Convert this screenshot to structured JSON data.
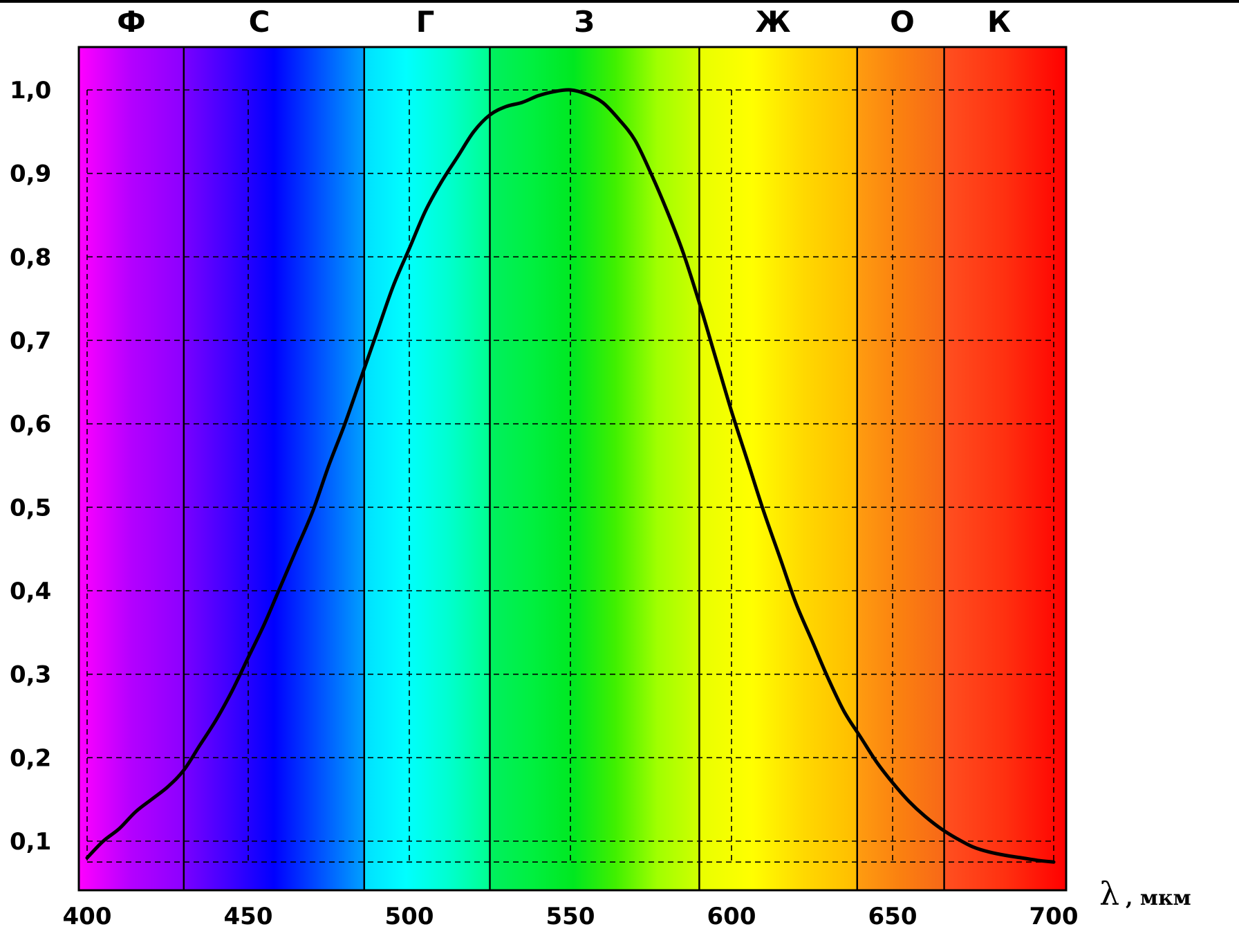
{
  "chart_data": {
    "type": "line",
    "x_axis": {
      "symbol": "λ",
      "unit": ", мкм",
      "range": [
        400,
        700
      ],
      "ticks": [
        "400",
        "450",
        "500",
        "550",
        "600",
        "650",
        "700"
      ]
    },
    "y_axis": {
      "ticks": [
        "0,1",
        "0,2",
        "0,3",
        "0,4",
        "0,5",
        "0,6",
        "0,7",
        "0,8",
        "0,9",
        "1,0"
      ]
    },
    "grid": true,
    "color_bands": [
      {
        "label": "Ф",
        "from": 400,
        "to": 430,
        "gradient": [
          "#ff00ff",
          "#b400ff",
          "#8c00ff"
        ]
      },
      {
        "label": "С",
        "from": 430,
        "to": 486,
        "gradient": [
          "#7a00ff",
          "#4000ff",
          "#0000ff",
          "#0050ff",
          "#00a0ff"
        ]
      },
      {
        "label": "Г",
        "from": 486,
        "to": 525,
        "gradient": [
          "#00e0ff",
          "#00ffff",
          "#00ffd0",
          "#00ff90"
        ]
      },
      {
        "label": "З",
        "from": 525,
        "to": 590,
        "gradient": [
          "#00f060",
          "#00f040",
          "#00e820",
          "#40f000",
          "#a0ff00",
          "#d0ff00"
        ]
      },
      {
        "label": "Ж",
        "from": 590,
        "to": 639,
        "gradient": [
          "#e8ff00",
          "#ffff00",
          "#ffd800",
          "#ffbc00"
        ]
      },
      {
        "label": "О",
        "from": 639,
        "to": 666,
        "gradient": [
          "#ff9c10",
          "#fa8010",
          "#f86818"
        ]
      },
      {
        "label": "К",
        "from": 666,
        "to": 700,
        "gradient": [
          "#ff5020",
          "#ff3010",
          "#ff0000"
        ]
      }
    ],
    "series": [
      {
        "color": "#000000",
        "points": [
          [
            400,
            0.08
          ],
          [
            405,
            0.1
          ],
          [
            410,
            0.115
          ],
          [
            415,
            0.135
          ],
          [
            420,
            0.15
          ],
          [
            425,
            0.165
          ],
          [
            430,
            0.185
          ],
          [
            435,
            0.215
          ],
          [
            440,
            0.245
          ],
          [
            445,
            0.28
          ],
          [
            450,
            0.32
          ],
          [
            455,
            0.36
          ],
          [
            460,
            0.405
          ],
          [
            465,
            0.45
          ],
          [
            470,
            0.495
          ],
          [
            475,
            0.55
          ],
          [
            480,
            0.6
          ],
          [
            485,
            0.655
          ],
          [
            490,
            0.71
          ],
          [
            495,
            0.765
          ],
          [
            500,
            0.81
          ],
          [
            505,
            0.855
          ],
          [
            510,
            0.89
          ],
          [
            515,
            0.92
          ],
          [
            520,
            0.95
          ],
          [
            525,
            0.97
          ],
          [
            530,
            0.98
          ],
          [
            535,
            0.985
          ],
          [
            540,
            0.993
          ],
          [
            545,
            0.998
          ],
          [
            550,
            1.0
          ],
          [
            555,
            0.995
          ],
          [
            560,
            0.985
          ],
          [
            565,
            0.965
          ],
          [
            570,
            0.94
          ],
          [
            575,
            0.9
          ],
          [
            580,
            0.855
          ],
          [
            585,
            0.805
          ],
          [
            590,
            0.745
          ],
          [
            595,
            0.68
          ],
          [
            600,
            0.615
          ],
          [
            605,
            0.555
          ],
          [
            610,
            0.495
          ],
          [
            615,
            0.44
          ],
          [
            620,
            0.385
          ],
          [
            625,
            0.34
          ],
          [
            630,
            0.295
          ],
          [
            635,
            0.255
          ],
          [
            640,
            0.225
          ],
          [
            645,
            0.195
          ],
          [
            650,
            0.17
          ],
          [
            655,
            0.148
          ],
          [
            660,
            0.13
          ],
          [
            665,
            0.115
          ],
          [
            670,
            0.103
          ],
          [
            675,
            0.093
          ],
          [
            680,
            0.087
          ],
          [
            685,
            0.083
          ],
          [
            690,
            0.08
          ],
          [
            695,
            0.077
          ],
          [
            700,
            0.075
          ]
        ]
      }
    ]
  }
}
